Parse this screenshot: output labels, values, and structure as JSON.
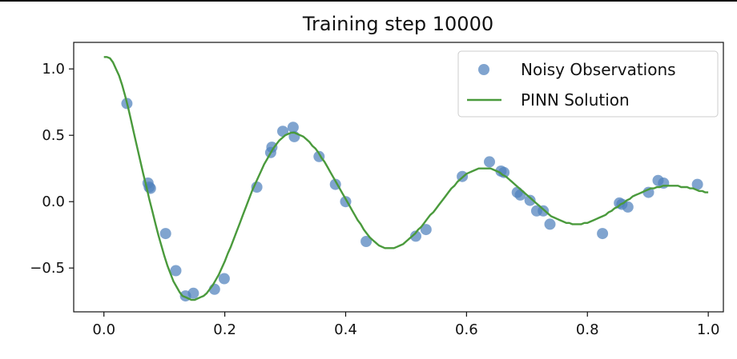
{
  "chart_data": {
    "type": "scatter",
    "title": "Training step 10000",
    "xlabel": "",
    "ylabel": "",
    "xlim": [
      -0.05,
      1.025
    ],
    "ylim": [
      -0.83,
      1.2
    ],
    "xticks": [
      0.0,
      0.2,
      0.4,
      0.6,
      0.8,
      1.0
    ],
    "xtick_labels": [
      "0.0",
      "0.2",
      "0.4",
      "0.6",
      "0.8",
      "1.0"
    ],
    "yticks": [
      -0.5,
      0.0,
      0.5,
      1.0
    ],
    "ytick_labels": [
      "−0.5",
      "0.0",
      "0.5",
      "1.0"
    ],
    "grid": false,
    "legend_position": "top-right",
    "series": [
      {
        "name": "Noisy Observations",
        "kind": "scatter",
        "color": "#4f81bd",
        "points": [
          [
            0.038,
            0.74
          ],
          [
            0.073,
            0.14
          ],
          [
            0.075,
            0.11
          ],
          [
            0.077,
            0.1
          ],
          [
            0.102,
            -0.24
          ],
          [
            0.119,
            -0.52
          ],
          [
            0.135,
            -0.71
          ],
          [
            0.148,
            -0.69
          ],
          [
            0.183,
            -0.66
          ],
          [
            0.199,
            -0.58
          ],
          [
            0.253,
            0.11
          ],
          [
            0.276,
            0.37
          ],
          [
            0.278,
            0.41
          ],
          [
            0.296,
            0.53
          ],
          [
            0.313,
            0.56
          ],
          [
            0.315,
            0.49
          ],
          [
            0.356,
            0.34
          ],
          [
            0.383,
            0.13
          ],
          [
            0.4,
            0.0
          ],
          [
            0.434,
            -0.3
          ],
          [
            0.516,
            -0.26
          ],
          [
            0.533,
            -0.21
          ],
          [
            0.593,
            0.19
          ],
          [
            0.638,
            0.3
          ],
          [
            0.657,
            0.23
          ],
          [
            0.662,
            0.22
          ],
          [
            0.684,
            0.07
          ],
          [
            0.689,
            0.05
          ],
          [
            0.705,
            0.01
          ],
          [
            0.716,
            -0.07
          ],
          [
            0.727,
            -0.07
          ],
          [
            0.738,
            -0.17
          ],
          [
            0.825,
            -0.24
          ],
          [
            0.853,
            -0.01
          ],
          [
            0.857,
            -0.02
          ],
          [
            0.867,
            -0.04
          ],
          [
            0.901,
            0.07
          ],
          [
            0.917,
            0.16
          ],
          [
            0.926,
            0.14
          ],
          [
            0.982,
            0.13
          ]
        ]
      },
      {
        "name": "PINN Solution",
        "kind": "line",
        "color": "#4a9a3c",
        "points": [
          [
            0.0,
            1.09
          ],
          [
            0.005,
            1.09
          ],
          [
            0.01,
            1.08
          ],
          [
            0.015,
            1.05
          ],
          [
            0.02,
            1.0
          ],
          [
            0.025,
            0.95
          ],
          [
            0.03,
            0.88
          ],
          [
            0.035,
            0.8
          ],
          [
            0.04,
            0.71
          ],
          [
            0.045,
            0.61
          ],
          [
            0.05,
            0.51
          ],
          [
            0.055,
            0.41
          ],
          [
            0.06,
            0.31
          ],
          [
            0.065,
            0.21
          ],
          [
            0.07,
            0.12
          ],
          [
            0.075,
            0.02
          ],
          [
            0.08,
            -0.07
          ],
          [
            0.085,
            -0.16
          ],
          [
            0.09,
            -0.25
          ],
          [
            0.095,
            -0.33
          ],
          [
            0.1,
            -0.41
          ],
          [
            0.105,
            -0.48
          ],
          [
            0.11,
            -0.54
          ],
          [
            0.115,
            -0.6
          ],
          [
            0.12,
            -0.64
          ],
          [
            0.125,
            -0.68
          ],
          [
            0.13,
            -0.71
          ],
          [
            0.135,
            -0.72
          ],
          [
            0.14,
            -0.73
          ],
          [
            0.145,
            -0.74
          ],
          [
            0.15,
            -0.74
          ],
          [
            0.155,
            -0.73
          ],
          [
            0.16,
            -0.72
          ],
          [
            0.165,
            -0.71
          ],
          [
            0.17,
            -0.69
          ],
          [
            0.175,
            -0.66
          ],
          [
            0.18,
            -0.63
          ],
          [
            0.185,
            -0.59
          ],
          [
            0.19,
            -0.55
          ],
          [
            0.195,
            -0.5
          ],
          [
            0.2,
            -0.45
          ],
          [
            0.205,
            -0.39
          ],
          [
            0.21,
            -0.34
          ],
          [
            0.215,
            -0.28
          ],
          [
            0.22,
            -0.22
          ],
          [
            0.225,
            -0.16
          ],
          [
            0.23,
            -0.1
          ],
          [
            0.235,
            -0.04
          ],
          [
            0.24,
            0.02
          ],
          [
            0.245,
            0.08
          ],
          [
            0.25,
            0.13
          ],
          [
            0.255,
            0.18
          ],
          [
            0.26,
            0.23
          ],
          [
            0.265,
            0.28
          ],
          [
            0.27,
            0.32
          ],
          [
            0.275,
            0.36
          ],
          [
            0.28,
            0.4
          ],
          [
            0.285,
            0.43
          ],
          [
            0.29,
            0.46
          ],
          [
            0.295,
            0.48
          ],
          [
            0.3,
            0.5
          ],
          [
            0.305,
            0.51
          ],
          [
            0.31,
            0.52
          ],
          [
            0.315,
            0.52
          ],
          [
            0.32,
            0.51
          ],
          [
            0.325,
            0.5
          ],
          [
            0.33,
            0.49
          ],
          [
            0.335,
            0.47
          ],
          [
            0.34,
            0.45
          ],
          [
            0.345,
            0.42
          ],
          [
            0.35,
            0.4
          ],
          [
            0.355,
            0.37
          ],
          [
            0.36,
            0.33
          ],
          [
            0.365,
            0.3
          ],
          [
            0.37,
            0.26
          ],
          [
            0.375,
            0.22
          ],
          [
            0.38,
            0.18
          ],
          [
            0.385,
            0.14
          ],
          [
            0.39,
            0.1
          ],
          [
            0.395,
            0.06
          ],
          [
            0.4,
            0.02
          ],
          [
            0.405,
            -0.02
          ],
          [
            0.41,
            -0.06
          ],
          [
            0.415,
            -0.1
          ],
          [
            0.42,
            -0.14
          ],
          [
            0.425,
            -0.17
          ],
          [
            0.43,
            -0.21
          ],
          [
            0.435,
            -0.24
          ],
          [
            0.44,
            -0.27
          ],
          [
            0.445,
            -0.29
          ],
          [
            0.45,
            -0.31
          ],
          [
            0.455,
            -0.33
          ],
          [
            0.46,
            -0.34
          ],
          [
            0.465,
            -0.35
          ],
          [
            0.47,
            -0.35
          ],
          [
            0.475,
            -0.35
          ],
          [
            0.48,
            -0.35
          ],
          [
            0.485,
            -0.34
          ],
          [
            0.49,
            -0.33
          ],
          [
            0.495,
            -0.32
          ],
          [
            0.5,
            -0.3
          ],
          [
            0.505,
            -0.28
          ],
          [
            0.51,
            -0.26
          ],
          [
            0.515,
            -0.24
          ],
          [
            0.52,
            -0.21
          ],
          [
            0.525,
            -0.19
          ],
          [
            0.53,
            -0.16
          ],
          [
            0.535,
            -0.13
          ],
          [
            0.54,
            -0.1
          ],
          [
            0.545,
            -0.08
          ],
          [
            0.55,
            -0.05
          ],
          [
            0.555,
            -0.02
          ],
          [
            0.56,
            0.01
          ],
          [
            0.565,
            0.04
          ],
          [
            0.57,
            0.07
          ],
          [
            0.575,
            0.1
          ],
          [
            0.58,
            0.12
          ],
          [
            0.585,
            0.15
          ],
          [
            0.59,
            0.17
          ],
          [
            0.595,
            0.19
          ],
          [
            0.6,
            0.21
          ],
          [
            0.605,
            0.22
          ],
          [
            0.61,
            0.23
          ],
          [
            0.615,
            0.24
          ],
          [
            0.62,
            0.25
          ],
          [
            0.625,
            0.25
          ],
          [
            0.63,
            0.25
          ],
          [
            0.635,
            0.25
          ],
          [
            0.64,
            0.25
          ],
          [
            0.645,
            0.24
          ],
          [
            0.65,
            0.23
          ],
          [
            0.655,
            0.22
          ],
          [
            0.66,
            0.2
          ],
          [
            0.665,
            0.19
          ],
          [
            0.67,
            0.17
          ],
          [
            0.675,
            0.15
          ],
          [
            0.68,
            0.13
          ],
          [
            0.685,
            0.11
          ],
          [
            0.69,
            0.09
          ],
          [
            0.695,
            0.07
          ],
          [
            0.7,
            0.05
          ],
          [
            0.705,
            0.03
          ],
          [
            0.71,
            0.01
          ],
          [
            0.715,
            -0.01
          ],
          [
            0.72,
            -0.03
          ],
          [
            0.725,
            -0.05
          ],
          [
            0.73,
            -0.07
          ],
          [
            0.735,
            -0.09
          ],
          [
            0.74,
            -0.11
          ],
          [
            0.745,
            -0.12
          ],
          [
            0.75,
            -0.13
          ],
          [
            0.755,
            -0.14
          ],
          [
            0.76,
            -0.15
          ],
          [
            0.765,
            -0.16
          ],
          [
            0.77,
            -0.16
          ],
          [
            0.775,
            -0.17
          ],
          [
            0.78,
            -0.17
          ],
          [
            0.785,
            -0.17
          ],
          [
            0.79,
            -0.17
          ],
          [
            0.795,
            -0.16
          ],
          [
            0.8,
            -0.16
          ],
          [
            0.805,
            -0.15
          ],
          [
            0.81,
            -0.14
          ],
          [
            0.815,
            -0.13
          ],
          [
            0.82,
            -0.12
          ],
          [
            0.825,
            -0.11
          ],
          [
            0.83,
            -0.1
          ],
          [
            0.835,
            -0.08
          ],
          [
            0.84,
            -0.07
          ],
          [
            0.845,
            -0.05
          ],
          [
            0.85,
            -0.04
          ],
          [
            0.855,
            -0.02
          ],
          [
            0.86,
            -0.01
          ],
          [
            0.865,
            0.01
          ],
          [
            0.87,
            0.02
          ],
          [
            0.875,
            0.04
          ],
          [
            0.88,
            0.05
          ],
          [
            0.885,
            0.06
          ],
          [
            0.89,
            0.07
          ],
          [
            0.895,
            0.08
          ],
          [
            0.9,
            0.09
          ],
          [
            0.905,
            0.1
          ],
          [
            0.91,
            0.1
          ],
          [
            0.915,
            0.11
          ],
          [
            0.92,
            0.11
          ],
          [
            0.925,
            0.12
          ],
          [
            0.93,
            0.12
          ],
          [
            0.935,
            0.12
          ],
          [
            0.94,
            0.12
          ],
          [
            0.945,
            0.12
          ],
          [
            0.95,
            0.12
          ],
          [
            0.955,
            0.11
          ],
          [
            0.96,
            0.11
          ],
          [
            0.965,
            0.11
          ],
          [
            0.97,
            0.1
          ],
          [
            0.975,
            0.1
          ],
          [
            0.98,
            0.09
          ],
          [
            0.985,
            0.08
          ],
          [
            0.99,
            0.08
          ],
          [
            0.995,
            0.07
          ],
          [
            1.0,
            0.07
          ]
        ]
      }
    ]
  }
}
